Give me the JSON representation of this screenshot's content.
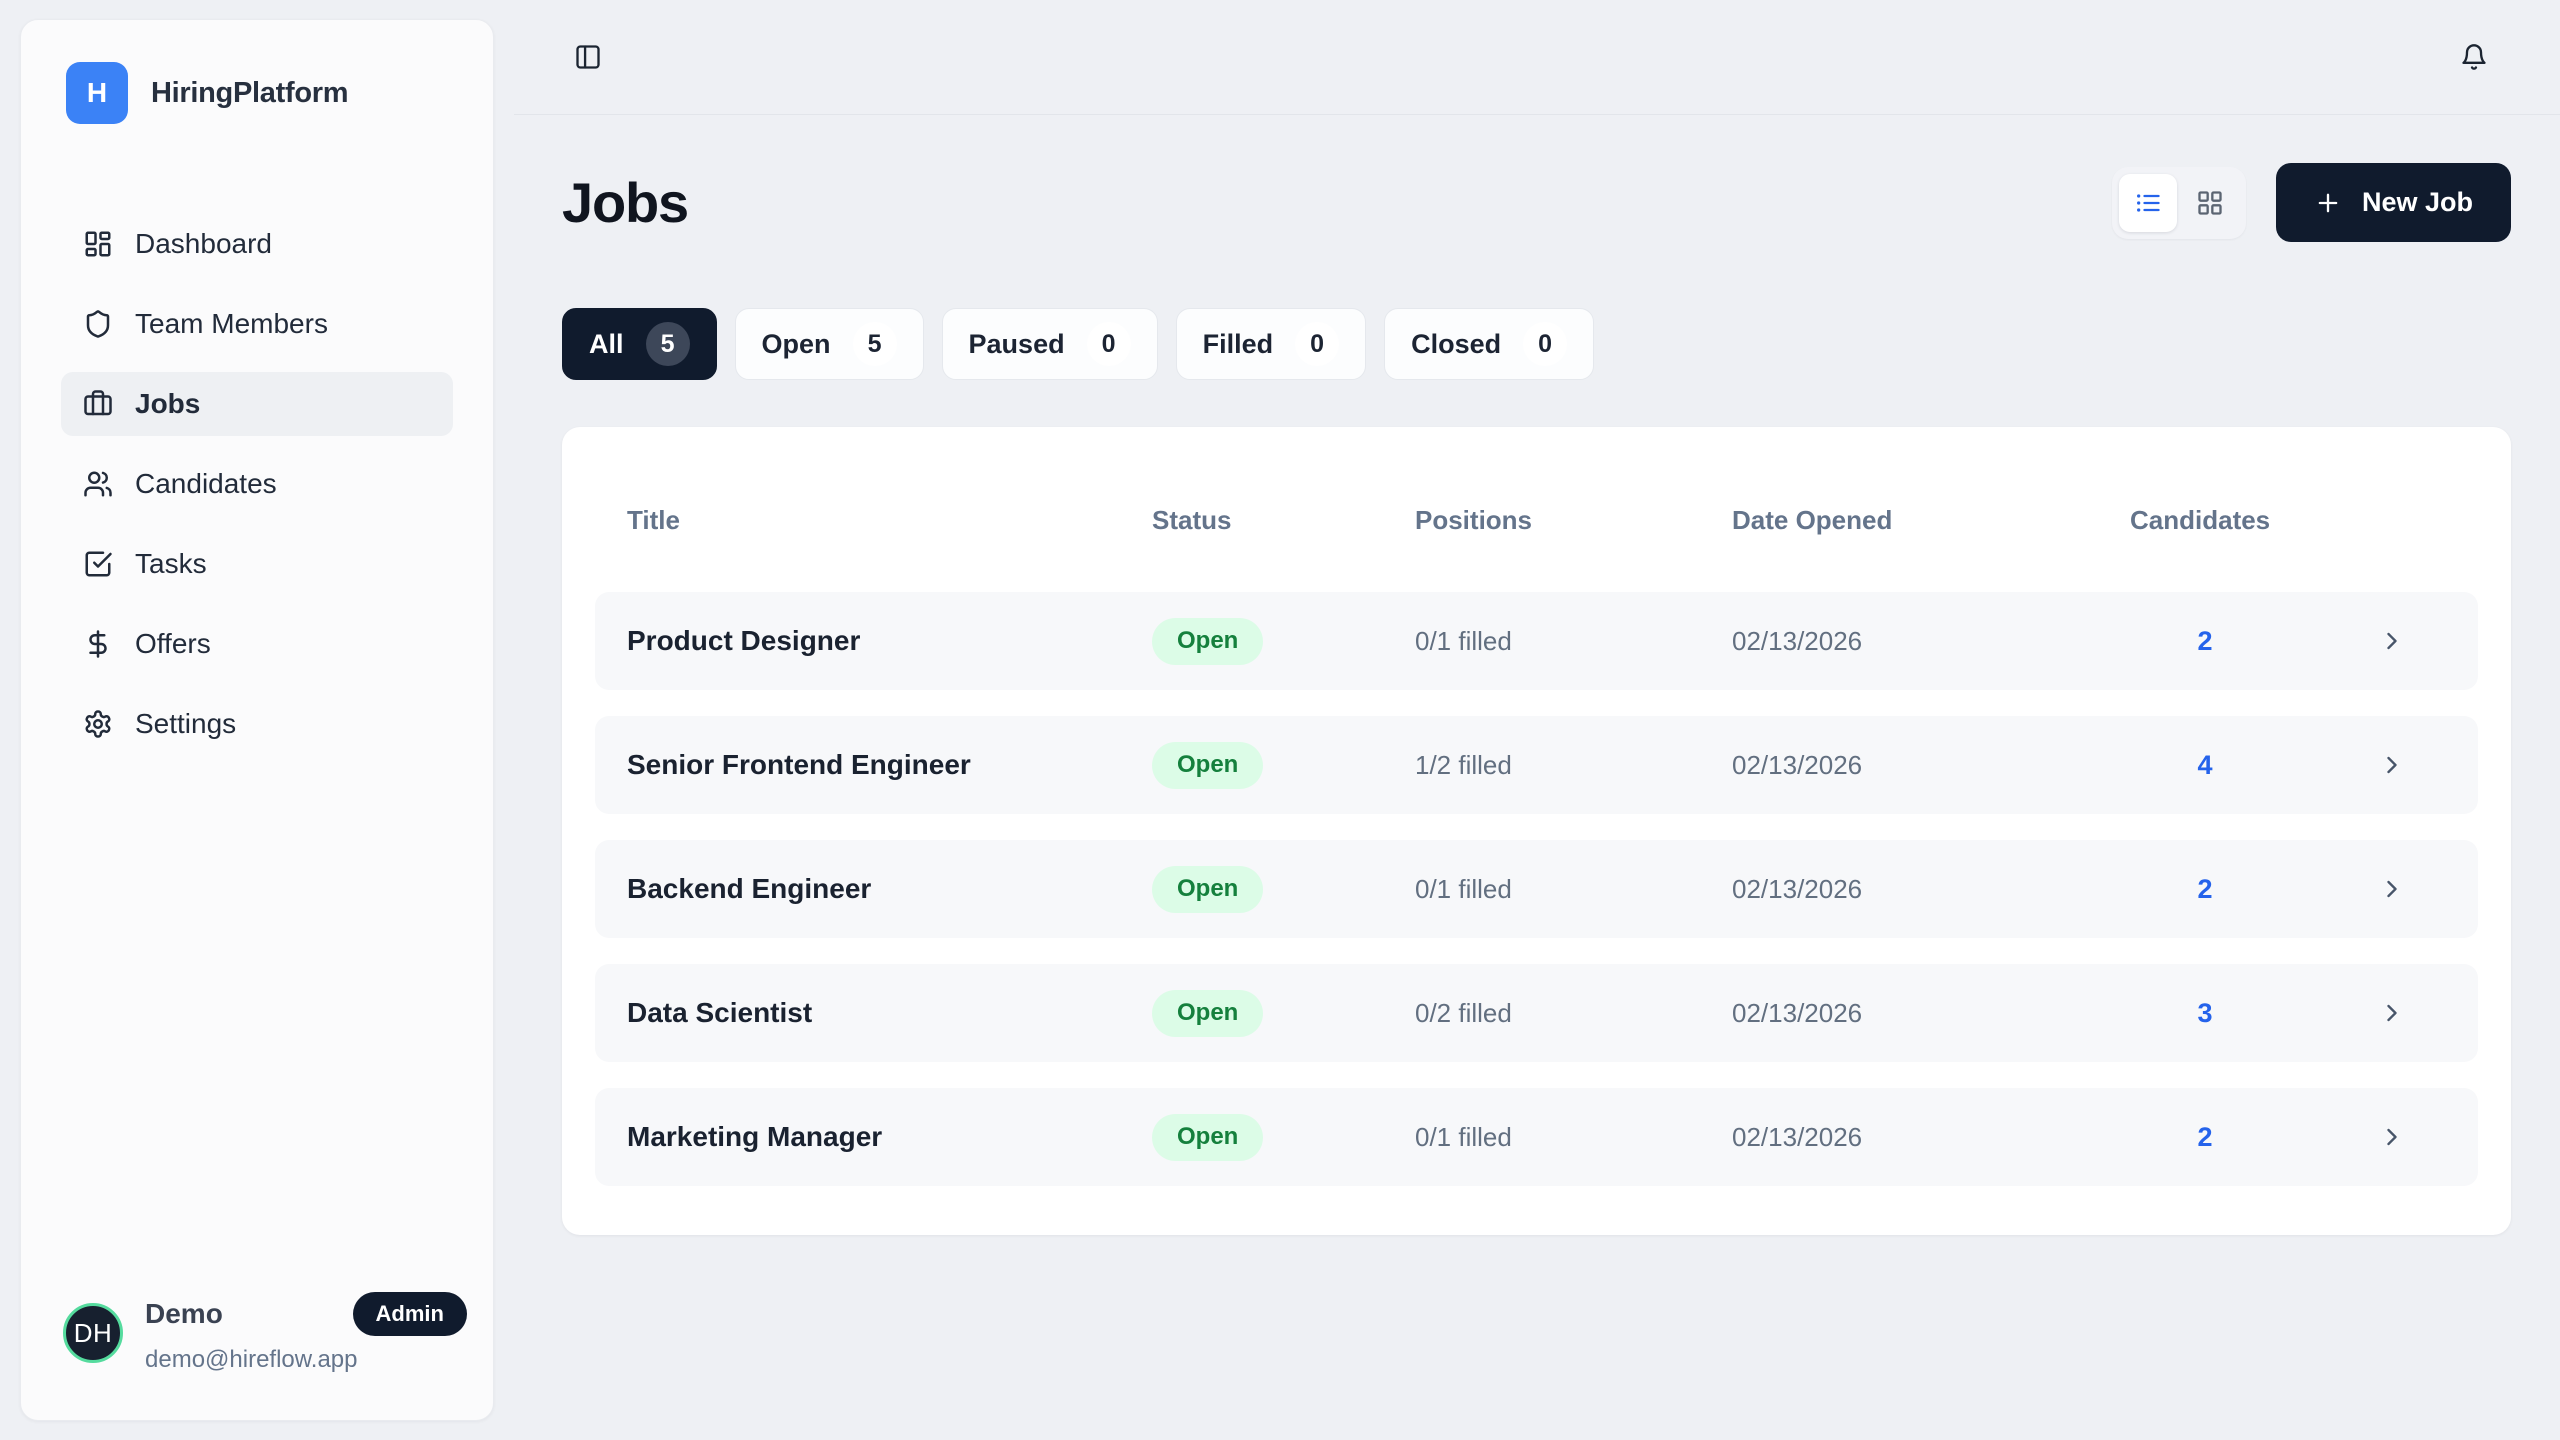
{
  "app": {
    "name": "HiringPlatform",
    "logo_letter": "H"
  },
  "sidebar": {
    "items": [
      {
        "label": "Dashboard",
        "icon": "dashboard-icon",
        "active": false
      },
      {
        "label": "Team Members",
        "icon": "shield-icon",
        "active": false
      },
      {
        "label": "Jobs",
        "icon": "briefcase-icon",
        "active": true
      },
      {
        "label": "Candidates",
        "icon": "users-icon",
        "active": false
      },
      {
        "label": "Tasks",
        "icon": "check-square-icon",
        "active": false
      },
      {
        "label": "Offers",
        "icon": "dollar-icon",
        "active": false
      },
      {
        "label": "Settings",
        "icon": "gear-icon",
        "active": false
      }
    ],
    "user": {
      "initials": "DH",
      "name": "Demo",
      "role_badge": "Admin",
      "email": "demo@hireflow.app"
    }
  },
  "page": {
    "title": "Jobs",
    "new_job_label": "New Job",
    "filters": [
      {
        "label": "All",
        "count": "5",
        "active": true
      },
      {
        "label": "Open",
        "count": "5",
        "active": false
      },
      {
        "label": "Paused",
        "count": "0",
        "active": false
      },
      {
        "label": "Filled",
        "count": "0",
        "active": false
      },
      {
        "label": "Closed",
        "count": "0",
        "active": false
      }
    ],
    "table": {
      "headers": [
        "Title",
        "Status",
        "Positions",
        "Date Opened",
        "Candidates"
      ],
      "rows": [
        {
          "title": "Product Designer",
          "status": "Open",
          "positions": "0/1 filled",
          "date_opened": "02/13/2026",
          "candidates": "2"
        },
        {
          "title": "Senior Frontend Engineer",
          "status": "Open",
          "positions": "1/2 filled",
          "date_opened": "02/13/2026",
          "candidates": "4"
        },
        {
          "title": "Backend Engineer",
          "status": "Open",
          "positions": "0/1 filled",
          "date_opened": "02/13/2026",
          "candidates": "2"
        },
        {
          "title": "Data Scientist",
          "status": "Open",
          "positions": "0/2 filled",
          "date_opened": "02/13/2026",
          "candidates": "3"
        },
        {
          "title": "Marketing Manager",
          "status": "Open",
          "positions": "0/1 filled",
          "date_opened": "02/13/2026",
          "candidates": "2"
        }
      ]
    }
  },
  "colors": {
    "accent_blue": "#3b82f6",
    "link_blue": "#2563eb",
    "navy_dark": "#101b2d",
    "status_open_bg": "#dcfce7",
    "status_open_text": "#15803d",
    "avatar_ring_green": "#55db9e",
    "page_background": "#eef0f4"
  }
}
